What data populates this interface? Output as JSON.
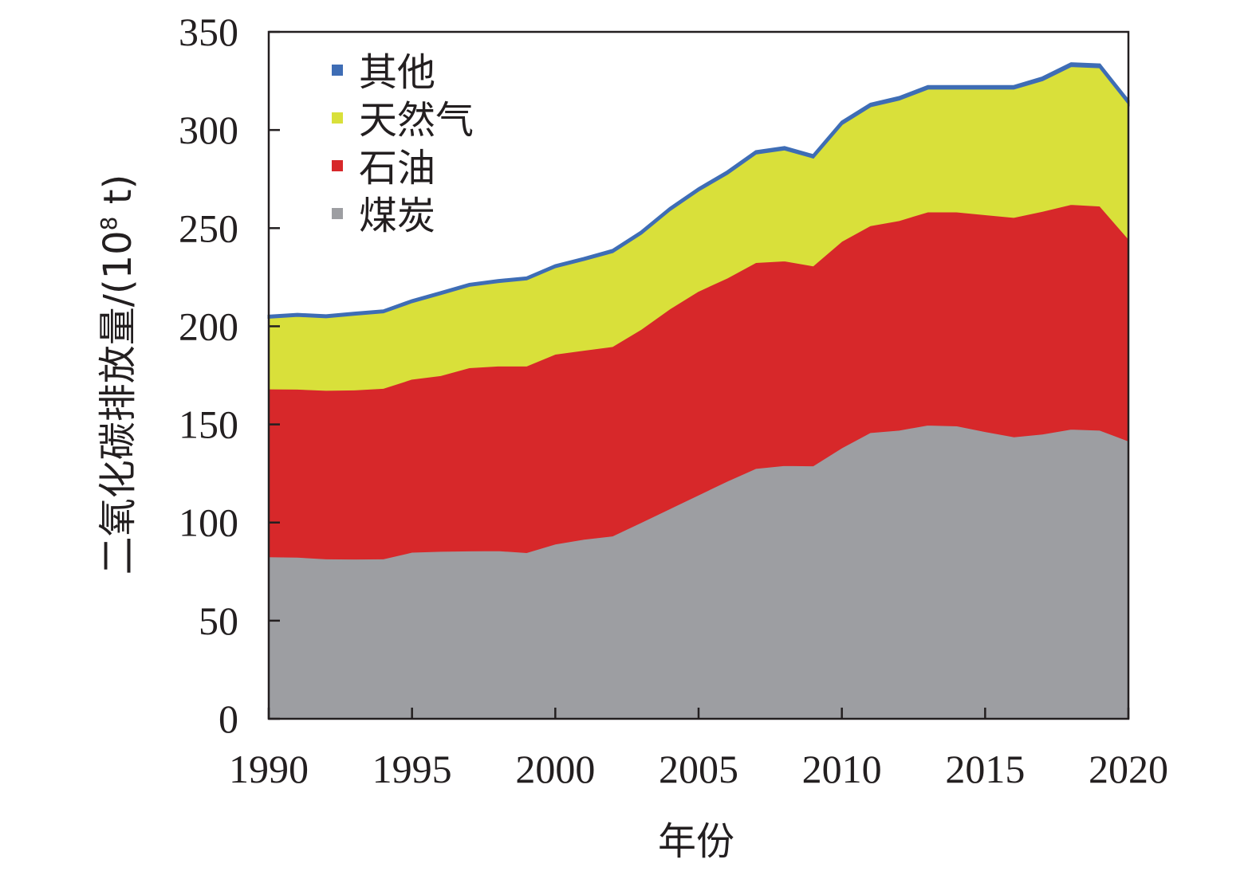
{
  "chart_data": {
    "type": "area",
    "stacked": true,
    "xlabel": "年份",
    "ylabel": "二氧化碳排放量/(10",
    "ylabel_sup": "8",
    "ylabel_unit": " t)",
    "xlim": [
      1990,
      2020
    ],
    "ylim": [
      0,
      350
    ],
    "xticks": [
      1990,
      1995,
      2000,
      2005,
      2010,
      2015,
      2020
    ],
    "yticks": [
      0,
      50,
      100,
      150,
      200,
      250,
      300,
      350
    ],
    "grid": false,
    "legend_position": "top-left",
    "x": [
      1990,
      1991,
      1992,
      1993,
      1994,
      1995,
      1996,
      1997,
      1998,
      1999,
      2000,
      2001,
      2002,
      2003,
      2004,
      2005,
      2006,
      2007,
      2008,
      2009,
      2010,
      2011,
      2012,
      2013,
      2014,
      2015,
      2016,
      2017,
      2018,
      2019,
      2020
    ],
    "series": [
      {
        "name": "煤炭",
        "color": "#9d9ea2",
        "values": [
          82.5,
          82.3,
          81.4,
          81.3,
          81.4,
          84.8,
          85.3,
          85.5,
          85.6,
          84.6,
          89.0,
          91.4,
          93.1,
          100.0,
          107.0,
          114.0,
          121.0,
          127.5,
          129.0,
          128.8,
          138.0,
          145.8,
          147.0,
          149.6,
          149.2,
          146.3,
          143.6,
          145.0,
          147.5,
          147.0,
          141.5
        ]
      },
      {
        "name": "石油",
        "color": "#d7282a",
        "values": [
          85.5,
          85.6,
          85.9,
          86.2,
          86.9,
          88.2,
          89.5,
          93.3,
          94.1,
          95.1,
          96.7,
          96.3,
          96.5,
          98.4,
          101.8,
          103.8,
          103.5,
          104.9,
          104.2,
          101.9,
          105.2,
          105.4,
          106.8,
          108.6,
          109.0,
          110.5,
          111.8,
          113.5,
          114.5,
          114.2,
          102.9
        ]
      },
      {
        "name": "天然气",
        "color": "#d9e03a",
        "values": [
          36.5,
          37.5,
          37.4,
          38.5,
          38.9,
          39.4,
          41.7,
          41.9,
          42.9,
          44.3,
          44.5,
          46.2,
          48.3,
          48.9,
          50.5,
          51.5,
          53.3,
          55.7,
          57.0,
          55.4,
          59.9,
          61.0,
          61.8,
          63.0,
          63.0,
          64.4,
          65.8,
          67.0,
          70.7,
          70.9,
          69.3
        ]
      },
      {
        "name": "其他",
        "color": "#3e6db5",
        "values": [
          0.8,
          0.8,
          0.8,
          0.8,
          0.8,
          0.8,
          0.8,
          0.8,
          0.8,
          0.8,
          0.8,
          0.8,
          0.9,
          0.9,
          0.9,
          0.9,
          1.0,
          1.0,
          1.0,
          1.0,
          1.1,
          1.1,
          1.1,
          1.1,
          1.1,
          1.1,
          1.1,
          1.2,
          1.2,
          1.2,
          1.2
        ]
      }
    ]
  }
}
